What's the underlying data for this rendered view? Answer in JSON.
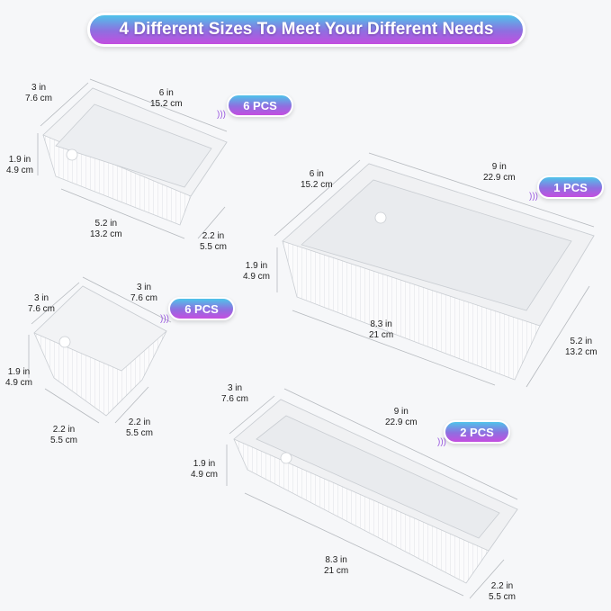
{
  "headline": "4 Different Sizes To Meet Your Different Needs",
  "colors": {
    "badge_top": "#4fc3ea",
    "badge_bottom": "#c44ee0",
    "background": "#f6f7f9"
  },
  "trays": [
    {
      "id": "small-rect",
      "pcs": "6 PCS",
      "dims": {
        "depth": [
          "3 in",
          "7.6 cm"
        ],
        "length_top": [
          "6 in",
          "15.2 cm"
        ],
        "height": [
          "1.9 in",
          "4.9 cm"
        ],
        "length_bottom": [
          "5.2 in",
          "13.2 cm"
        ],
        "width_bottom": [
          "2.2 in",
          "5.5 cm"
        ]
      }
    },
    {
      "id": "large-rect",
      "pcs": "1 PCS",
      "dims": {
        "depth": [
          "6 in",
          "15.2 cm"
        ],
        "length_top": [
          "9 in",
          "22.9 cm"
        ],
        "height": [
          "1.9 in",
          "4.9 cm"
        ],
        "length_bottom": [
          "8.3 in",
          "21 cm"
        ],
        "width_bottom": [
          "5.2 in",
          "13.2 cm"
        ]
      }
    },
    {
      "id": "square",
      "pcs": "6 PCS",
      "dims": {
        "depth": [
          "3 in",
          "7.6 cm"
        ],
        "length_top": [
          "3 in",
          "7.6 cm"
        ],
        "height": [
          "1.9 in",
          "4.9 cm"
        ],
        "length_bottom": [
          "2.2 in",
          "5.5 cm"
        ],
        "width_bottom": [
          "2.2 in",
          "5.5 cm"
        ]
      }
    },
    {
      "id": "long-rect",
      "pcs": "2 PCS",
      "dims": {
        "depth": [
          "3 in",
          "7.6 cm"
        ],
        "length_top": [
          "9 in",
          "22.9 cm"
        ],
        "height": [
          "1.9 in",
          "4.9 cm"
        ],
        "length_bottom": [
          "8.3 in",
          "21 cm"
        ],
        "width_bottom": [
          "2.2 in",
          "5.5 cm"
        ]
      }
    }
  ]
}
